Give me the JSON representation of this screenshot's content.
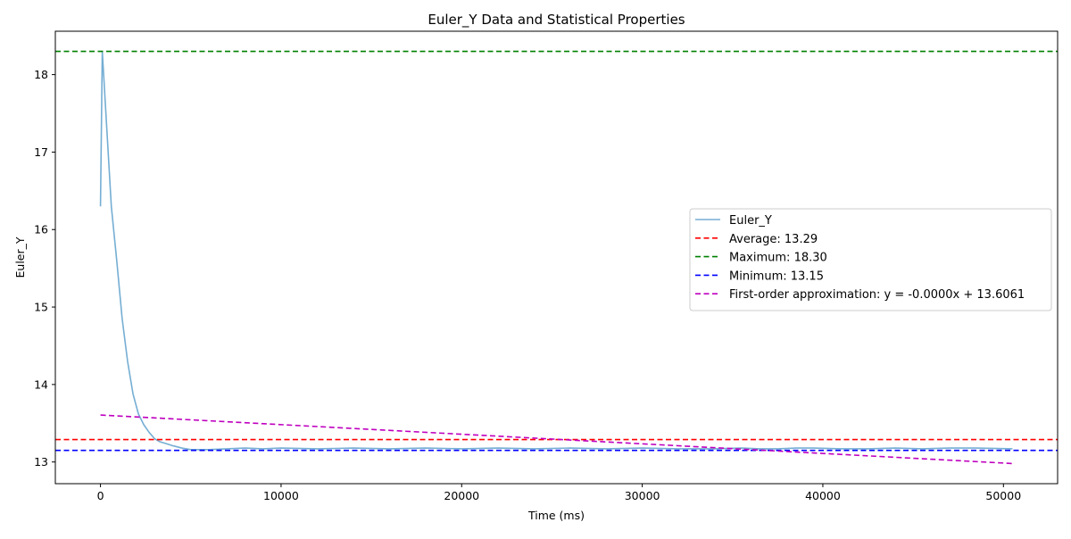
{
  "chart_data": {
    "type": "line",
    "title": "Euler_Y Data and Statistical Properties",
    "xlabel": "Time (ms)",
    "ylabel": "Euler_Y",
    "xlim": [
      -2500,
      53000
    ],
    "ylim": [
      12.72,
      18.56
    ],
    "xticks": [
      0,
      10000,
      20000,
      30000,
      40000,
      50000
    ],
    "yticks": [
      13,
      14,
      15,
      16,
      17,
      18
    ],
    "grid": false,
    "legend_position": "center-right",
    "series": [
      {
        "name": "Euler_Y",
        "color": "#75aed3",
        "style": "solid",
        "x": [
          0,
          100,
          300,
          600,
          900,
          1200,
          1500,
          1800,
          2100,
          2400,
          2700,
          3000,
          3300,
          3600,
          4000,
          4500,
          5000,
          6000,
          7000,
          8000,
          9000,
          10000,
          12000,
          14000,
          16000,
          18000,
          20000,
          22000,
          24000,
          26000,
          28000,
          30000,
          32000,
          34000,
          35500,
          36500,
          37500,
          38500,
          39500,
          41000,
          42500,
          44000,
          45500,
          47000,
          48500,
          50500
        ],
        "y": [
          16.3,
          18.3,
          17.5,
          16.3,
          15.6,
          14.85,
          14.3,
          13.88,
          13.62,
          13.48,
          13.38,
          13.3,
          13.26,
          13.24,
          13.21,
          13.18,
          13.16,
          13.16,
          13.17,
          13.18,
          13.17,
          13.18,
          13.17,
          13.18,
          13.17,
          13.18,
          13.17,
          13.18,
          13.17,
          13.18,
          13.17,
          13.18,
          13.17,
          13.17,
          13.18,
          13.17,
          13.17,
          13.18,
          13.18,
          13.17,
          13.17,
          13.18,
          13.17,
          13.18,
          13.18,
          13.17
        ]
      },
      {
        "name": "Average: 13.29",
        "color": "#ff0000",
        "style": "dashed",
        "type": "hline",
        "y": 13.29
      },
      {
        "name": "Maximum: 18.30",
        "color": "#008000",
        "style": "dashed",
        "type": "hline",
        "y": 18.3
      },
      {
        "name": "Minimum: 13.15",
        "color": "#0000ff",
        "style": "dashed",
        "type": "hline",
        "y": 13.15
      },
      {
        "name": "First-order approximation: y = -0.0000x + 13.6061",
        "color": "#bf00bf",
        "style": "dashed",
        "x": [
          0,
          50500
        ],
        "y": [
          13.6061,
          12.98
        ]
      }
    ]
  }
}
